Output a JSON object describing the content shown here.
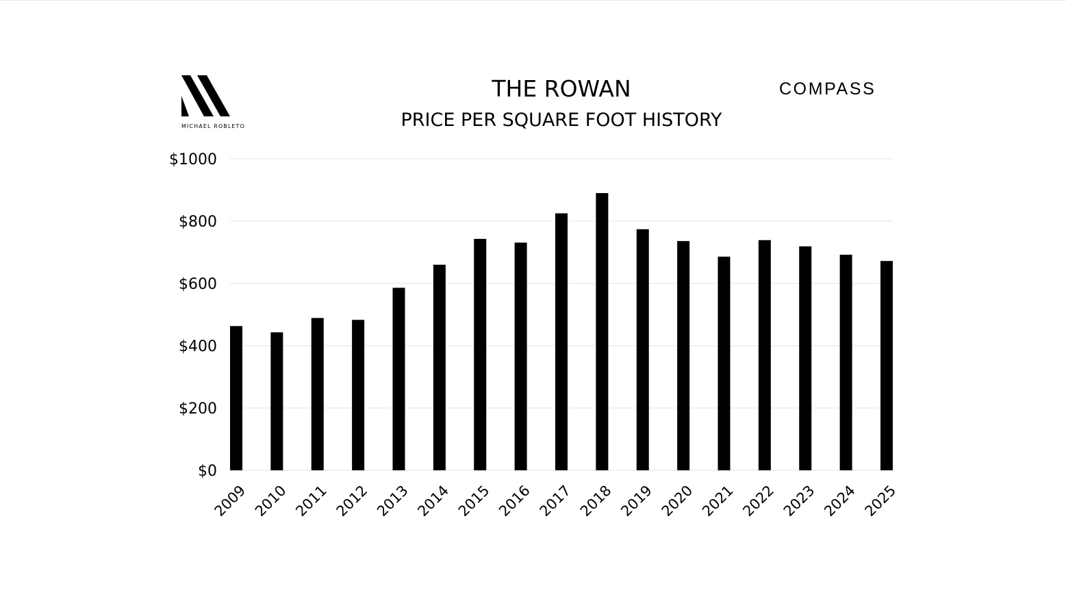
{
  "brand_left": {
    "logo_icon": "mr-monogram-logo",
    "caption": "MICHAEL ROBLETO"
  },
  "brand_right": {
    "name": "COMPASS"
  },
  "chart_data": {
    "type": "bar",
    "title": "THE ROWAN",
    "subtitle": "PRICE PER SQUARE FOOT HISTORY",
    "xlabel": "",
    "ylabel": "",
    "categories": [
      "2009",
      "2010",
      "2011",
      "2012",
      "2013",
      "2014",
      "2015",
      "2016",
      "2017",
      "2018",
      "2019",
      "2020",
      "2021",
      "2022",
      "2023",
      "2024",
      "2025"
    ],
    "values": [
      463,
      443,
      489,
      483,
      586,
      660,
      743,
      731,
      825,
      890,
      774,
      736,
      686,
      739,
      719,
      692,
      672
    ],
    "ylim": [
      0,
      1000
    ],
    "yticks": [
      0,
      200,
      400,
      600,
      800,
      1000
    ],
    "ytick_labels": [
      "$0",
      "$200",
      "$400",
      "$600",
      "$800",
      "$1000"
    ],
    "grid": true,
    "bar_color": "#000000",
    "grid_color": "#e3e3e3",
    "legend": "none"
  }
}
